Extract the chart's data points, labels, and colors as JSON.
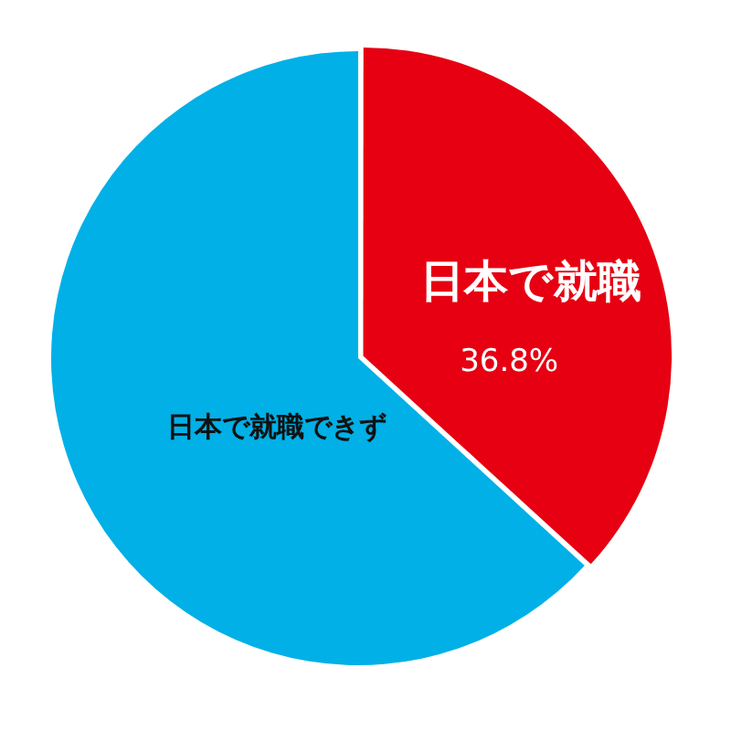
{
  "chart_data": {
    "type": "pie",
    "categories": [
      "日本で就職",
      "日本で就職できず"
    ],
    "values": [
      36.8,
      63.2
    ],
    "colors": [
      "#e60012",
      "#00b0e6"
    ],
    "value_labels": [
      "36.8%",
      null
    ],
    "legend": false
  }
}
